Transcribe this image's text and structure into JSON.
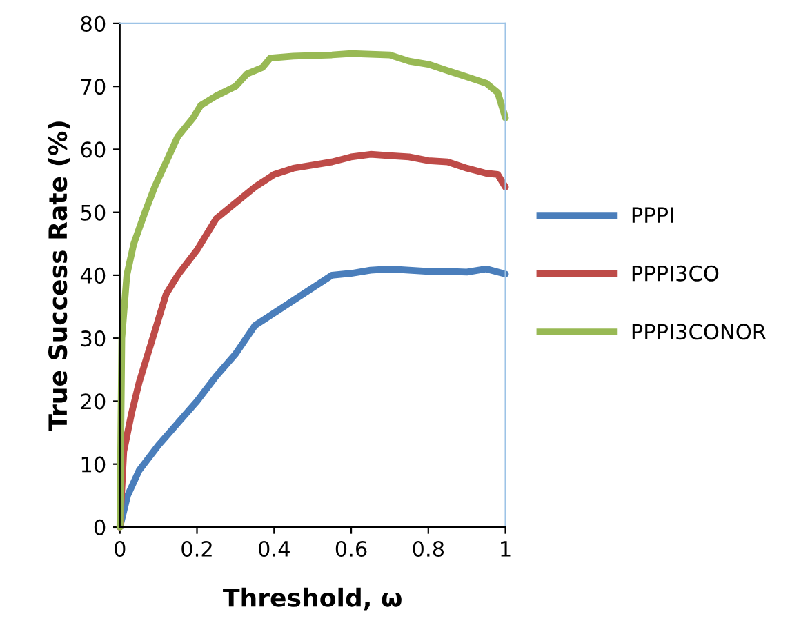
{
  "chart_data": {
    "type": "line",
    "xlabel": "Threshold, ω",
    "ylabel": "True Success Rate (%)",
    "xlim": [
      0,
      1
    ],
    "xticks": [
      0,
      0.2,
      0.4,
      0.6,
      0.8,
      1
    ],
    "ylim": [
      0,
      80
    ],
    "yticks": [
      0,
      10,
      20,
      30,
      40,
      50,
      60,
      70,
      80
    ],
    "grid": false,
    "legend": "right",
    "marker": "none",
    "line_style": "solid",
    "series": [
      {
        "name": "PPPI",
        "color": "#4a7ebb",
        "x": [
          0,
          0.02,
          0.05,
          0.1,
          0.15,
          0.2,
          0.25,
          0.3,
          0.35,
          0.4,
          0.45,
          0.5,
          0.55,
          0.6,
          0.65,
          0.7,
          0.75,
          0.8,
          0.85,
          0.9,
          0.95,
          1.0
        ],
        "values": [
          0,
          5,
          9,
          13,
          16.5,
          20,
          24,
          27.5,
          32,
          34,
          36,
          38,
          40,
          40.3,
          40.8,
          41,
          40.8,
          40.6,
          40.6,
          40.5,
          41,
          40.2
        ]
      },
      {
        "name": "PPPI3CO",
        "color": "#be4b48",
        "x": [
          0,
          0.01,
          0.03,
          0.05,
          0.08,
          0.1,
          0.12,
          0.15,
          0.2,
          0.25,
          0.3,
          0.35,
          0.4,
          0.45,
          0.5,
          0.55,
          0.6,
          0.65,
          0.7,
          0.75,
          0.8,
          0.85,
          0.9,
          0.95,
          0.98,
          1.0
        ],
        "values": [
          0,
          12,
          18,
          23,
          29,
          33,
          37,
          40,
          44,
          49,
          51.5,
          54,
          56,
          57,
          57.5,
          58,
          58.8,
          59.2,
          59,
          58.8,
          58.2,
          58,
          57,
          56.2,
          56,
          54
        ]
      },
      {
        "name": "PPPI3CONOR",
        "color": "#98b954",
        "x": [
          0,
          0.005,
          0.018,
          0.036,
          0.065,
          0.09,
          0.12,
          0.15,
          0.19,
          0.21,
          0.25,
          0.3,
          0.33,
          0.37,
          0.39,
          0.45,
          0.55,
          0.6,
          0.7,
          0.75,
          0.8,
          0.85,
          0.9,
          0.95,
          0.98,
          1.0
        ],
        "values": [
          0,
          30,
          40,
          45,
          50,
          54,
          58,
          62,
          65,
          67,
          68.5,
          70,
          72,
          73,
          74.5,
          74.8,
          75,
          75.2,
          75,
          74,
          73.5,
          72.5,
          71.5,
          70.5,
          69,
          65
        ]
      }
    ]
  }
}
